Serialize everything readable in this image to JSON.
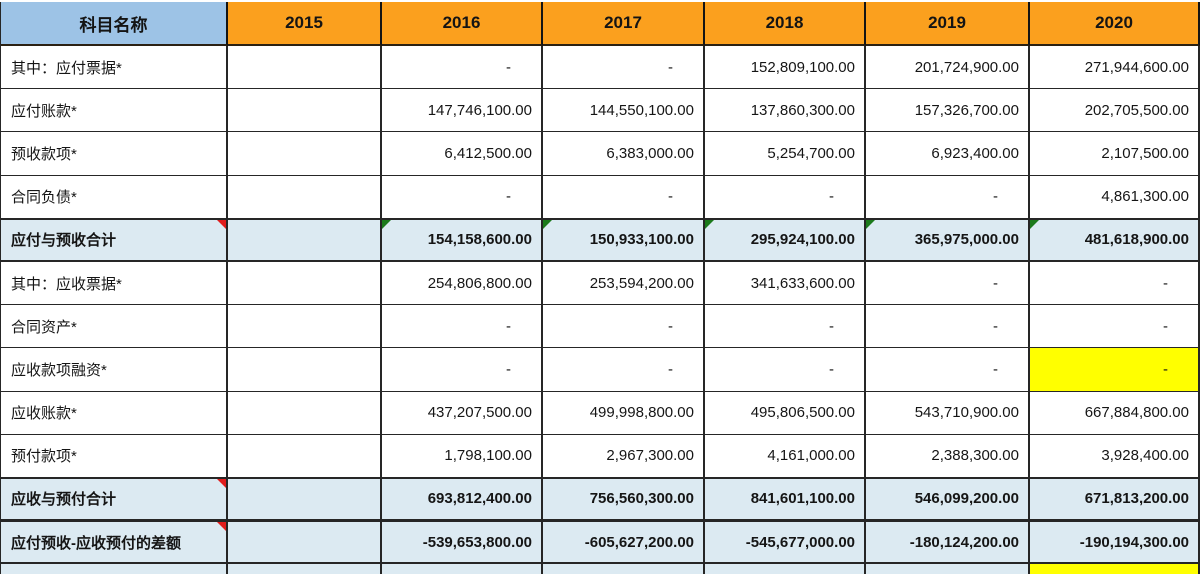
{
  "table": {
    "header": {
      "subject_label": "科目名称",
      "years": [
        "2015",
        "2016",
        "2017",
        "2018",
        "2019",
        "2020"
      ]
    },
    "rows": [
      {
        "label": "其中：应付票据*",
        "style": "normal",
        "values": [
          "",
          "-",
          "-",
          "152,809,100.00",
          "201,724,900.00",
          "271,944,600.00"
        ]
      },
      {
        "label": "应付账款*",
        "style": "normal",
        "values": [
          "",
          "147,746,100.00",
          "144,550,100.00",
          "137,860,300.00",
          "157,326,700.00",
          "202,705,500.00"
        ]
      },
      {
        "label": "预收款项*",
        "style": "normal",
        "values": [
          "",
          "6,412,500.00",
          "6,383,000.00",
          "5,254,700.00",
          "6,923,400.00",
          "2,107,500.00"
        ]
      },
      {
        "label": "合同负债*",
        "style": "normal",
        "values": [
          "",
          "-",
          "-",
          "-",
          "-",
          "4,861,300.00"
        ]
      },
      {
        "label": "应付与预收合计",
        "style": "summary",
        "label_marker": "red-corner",
        "value_markers": [
          1,
          2,
          3,
          4,
          5
        ],
        "values": [
          "",
          "154,158,600.00",
          "150,933,100.00",
          "295,924,100.00",
          "365,975,000.00",
          "481,618,900.00"
        ]
      },
      {
        "label": "其中：应收票据*",
        "style": "normal",
        "values": [
          "",
          "254,806,800.00",
          "253,594,200.00",
          "341,633,600.00",
          "-",
          "-"
        ]
      },
      {
        "label": "合同资产*",
        "style": "normal",
        "values": [
          "",
          "-",
          "-",
          "-",
          "-",
          "-"
        ]
      },
      {
        "label": "应收款项融资*",
        "style": "normal",
        "highlight_cols": [
          5
        ],
        "values": [
          "",
          "-",
          "-",
          "-",
          "-",
          "-"
        ]
      },
      {
        "label": "应收账款*",
        "style": "normal",
        "values": [
          "",
          "437,207,500.00",
          "499,998,800.00",
          "495,806,500.00",
          "543,710,900.00",
          "667,884,800.00"
        ]
      },
      {
        "label": "预付款项*",
        "style": "normal",
        "values": [
          "",
          "1,798,100.00",
          "2,967,300.00",
          "4,161,000.00",
          "2,388,300.00",
          "3,928,400.00"
        ]
      },
      {
        "label": "应收与预付合计",
        "style": "summary",
        "label_marker": "red-corner",
        "value_markers": [],
        "values": [
          "",
          "693,812,400.00",
          "756,560,300.00",
          "841,601,100.00",
          "546,099,200.00",
          "671,813,200.00"
        ]
      },
      {
        "label": "应付预收-应收预付的差额",
        "style": "summary",
        "label_marker": "red-corner",
        "value_markers": [],
        "values": [
          "",
          "-539,653,800.00",
          "-605,627,200.00",
          "-545,677,000.00",
          "-180,124,200.00",
          "-190,194,300.00"
        ]
      }
    ],
    "partial_bottom_row": {
      "fill": "summary-blue",
      "last_column_fill": "yellow"
    }
  },
  "colors": {
    "header_blue": "#9DC3E6",
    "header_orange": "#FBA01E",
    "summary_blue": "#DCEAF2",
    "highlight_yellow": "#FFFF00",
    "comment_marker_red": "#E01C1C",
    "formula_marker_green": "#1C7A1C",
    "grid_line": "#262626",
    "text": "#151515"
  }
}
